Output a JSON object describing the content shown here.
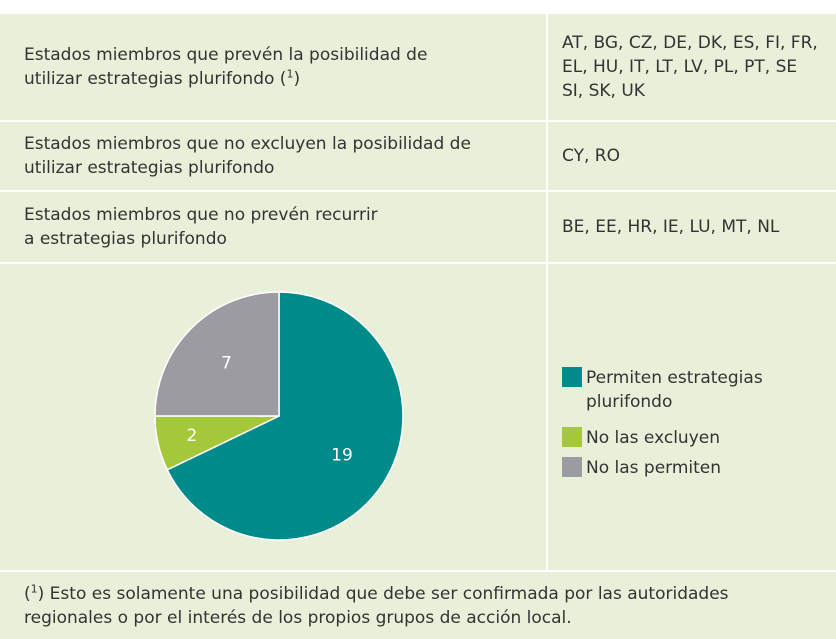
{
  "table": {
    "rows": [
      {
        "label": [
          "Estados miembros que prevén la posibilidad de",
          "utilizar estrategias plurifondo ("
        ],
        "ref": "1",
        "ref_close": ")",
        "countries": [
          "AT, BG, CZ, DE, DK, ES, FI, FR,",
          "EL, HU, IT, LT, LV, PL, PT, SE",
          "SI, SK, UK"
        ]
      },
      {
        "label": [
          "Estados miembros que no excluyen la posibilidad de",
          "utilizar estrategias plurifondo"
        ],
        "countries": [
          "CY, RO"
        ]
      },
      {
        "label": [
          "Estados miembros que no prevén recurrir",
          "a estrategias plurifondo"
        ],
        "countries": [
          "BE, EE, HR, IE, LU, MT, NL"
        ]
      }
    ]
  },
  "chart_data": {
    "type": "pie",
    "categories": [
      "Permiten estrategias plurifondo",
      "No las excluyen",
      "No las permiten"
    ],
    "values": [
      19,
      2,
      7
    ],
    "colors": [
      "#008b8b",
      "#a5c83a",
      "#9b9ba1"
    ]
  },
  "footnote": {
    "open": "(",
    "ref": "1",
    "text": ") Esto es solamente una posibilidad que debe ser confirmada por las autoridades",
    "text2": "regionales o por el interés de los propios grupos de acción local."
  }
}
